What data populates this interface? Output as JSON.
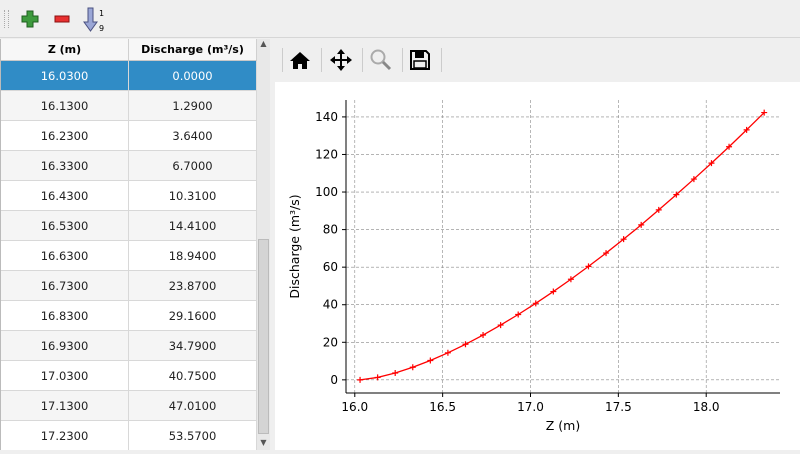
{
  "toolbar": {
    "icons": [
      "add-row-icon",
      "remove-row-icon",
      "sort-ascending-icon"
    ]
  },
  "plot_toolbar": {
    "icons": [
      "home-icon",
      "pan-icon",
      "zoom-icon",
      "save-icon"
    ]
  },
  "table": {
    "headers": [
      "Z (m)",
      "Discharge (m³/s)"
    ],
    "rows": [
      [
        "16.0300",
        "0.0000"
      ],
      [
        "16.1300",
        "1.2900"
      ],
      [
        "16.2300",
        "3.6400"
      ],
      [
        "16.3300",
        "6.7000"
      ],
      [
        "16.4300",
        "10.3100"
      ],
      [
        "16.5300",
        "14.4100"
      ],
      [
        "16.6300",
        "18.9400"
      ],
      [
        "16.7300",
        "23.8700"
      ],
      [
        "16.8300",
        "29.1600"
      ],
      [
        "16.9300",
        "34.7900"
      ],
      [
        "17.0300",
        "40.7500"
      ],
      [
        "17.1300",
        "47.0100"
      ],
      [
        "17.2300",
        "53.5700"
      ]
    ],
    "selected_row": 0,
    "selection_color": "#308cc6"
  },
  "chart_data": {
    "type": "line",
    "xlabel": "Z (m)",
    "ylabel": "Discharge (m³/s)",
    "xlim": [
      15.95,
      18.42
    ],
    "ylim": [
      -7,
      149
    ],
    "xticks": [
      "16.0",
      "16.5",
      "17.0",
      "17.5",
      "18.0"
    ],
    "yticks": [
      "0",
      "20",
      "40",
      "60",
      "80",
      "100",
      "120",
      "140"
    ],
    "grid": true,
    "series": [
      {
        "color": "#ff0000",
        "marker": "+",
        "x": [
          16.03,
          16.13,
          16.23,
          16.33,
          16.43,
          16.53,
          16.63,
          16.73,
          16.83,
          16.93,
          17.03,
          17.13,
          17.23,
          17.33,
          17.43,
          17.53,
          17.63,
          17.73,
          17.83,
          17.93,
          18.03,
          18.13,
          18.23,
          18.33
        ],
        "y": [
          0,
          1.29,
          3.64,
          6.7,
          10.31,
          14.41,
          18.94,
          23.87,
          29.16,
          34.79,
          40.75,
          47.01,
          53.57,
          60.4,
          67.5,
          74.9,
          82.5,
          90.5,
          98.6,
          106.9,
          115.4,
          124.1,
          133.1,
          142.3
        ]
      }
    ]
  }
}
